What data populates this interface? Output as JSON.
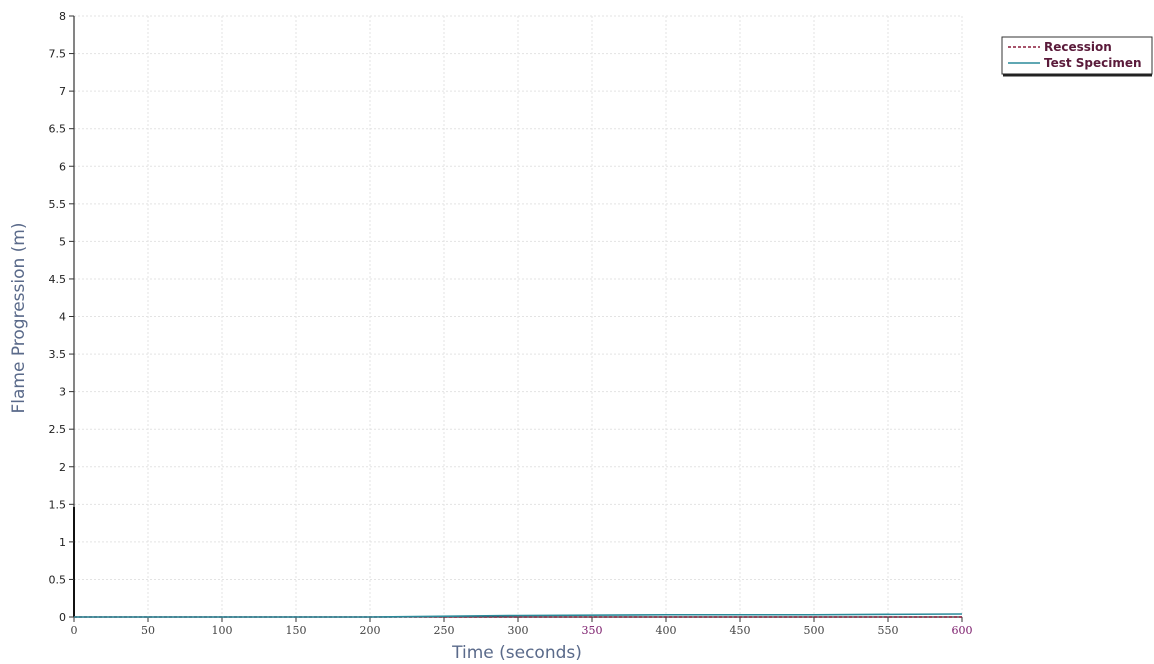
{
  "chart_data": {
    "type": "line",
    "title": "",
    "xlabel": "Time (seconds)",
    "ylabel": "Flame Progression (m)",
    "xlim": [
      0,
      600
    ],
    "ylim": [
      0,
      8
    ],
    "x_ticks": [
      "0",
      "50",
      "100",
      "150",
      "200",
      "250",
      "300",
      "350",
      "400",
      "450",
      "500",
      "550",
      "600"
    ],
    "y_ticks": [
      "0",
      "0.5",
      "1",
      "1.5",
      "2",
      "2.5",
      "3",
      "3.5",
      "4",
      "4.5",
      "5",
      "5.5",
      "6",
      "6.5",
      "7",
      "7.5",
      "8"
    ],
    "grid": true,
    "legend_position": "top-right",
    "series": [
      {
        "name": "Recession",
        "color": "#8a1a3a",
        "dash": "dashed",
        "x": [
          0,
          600
        ],
        "y": [
          0,
          0
        ]
      },
      {
        "name": "Test Specimen",
        "color": "#2a8a9a",
        "dash": "solid",
        "x": [
          0,
          100,
          200,
          300,
          400,
          500,
          600
        ],
        "y": [
          0,
          0,
          0,
          0.02,
          0.03,
          0.03,
          0.04
        ]
      }
    ],
    "x_tick_colors": {
      "default": "#444444",
      "highlight": "#7a1a6a",
      "highlighted": [
        "350",
        "600"
      ]
    }
  }
}
